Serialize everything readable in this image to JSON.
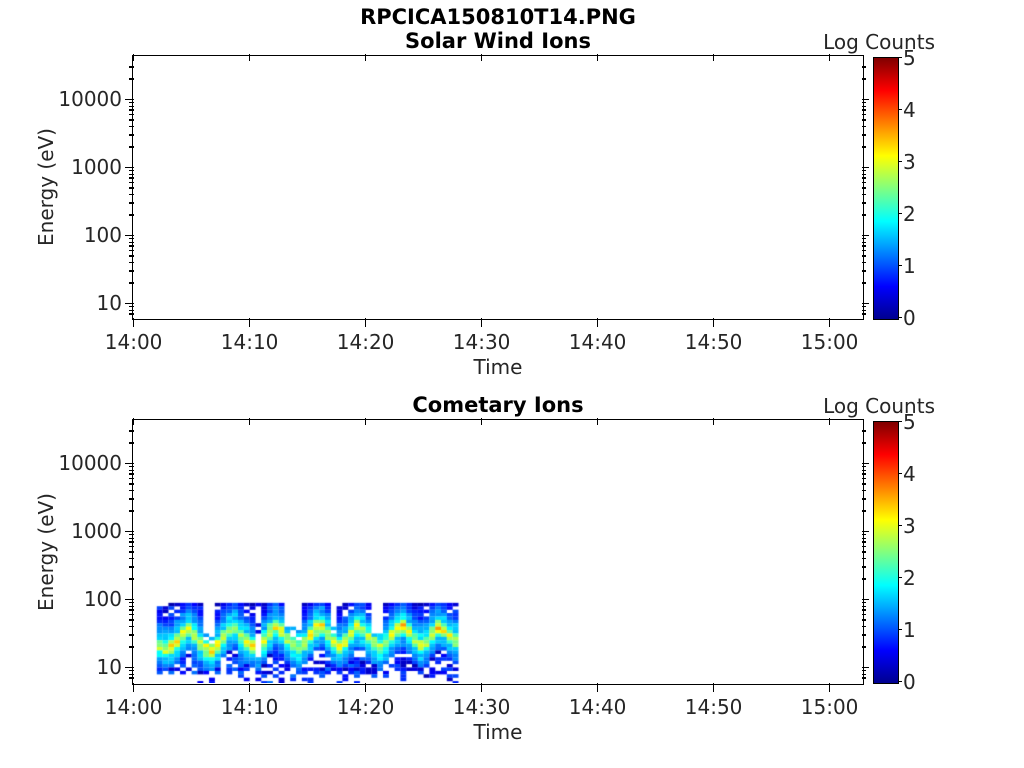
{
  "figure": {
    "suptitle": "RPCICA150810T14.PNG"
  },
  "plots": [
    {
      "title": "Solar Wind Ions",
      "xlabel": "Time",
      "ylabel": "Energy (eV)",
      "x_ticks": [
        "14:00",
        "14:10",
        "14:20",
        "14:30",
        "14:40",
        "14:50",
        "15:00"
      ],
      "y_ticks": [
        "10",
        "100",
        "1000",
        "10000"
      ],
      "colorbar": {
        "title": "Log Counts",
        "ticks": [
          "0",
          "1",
          "2",
          "3",
          "4",
          "5"
        ]
      }
    },
    {
      "title": "Cometary Ions",
      "xlabel": "Time",
      "ylabel": "Energy (eV)",
      "x_ticks": [
        "14:00",
        "14:10",
        "14:20",
        "14:30",
        "14:40",
        "14:50",
        "15:00"
      ],
      "y_ticks": [
        "10",
        "100",
        "1000",
        "10000"
      ],
      "colorbar": {
        "title": "Log Counts",
        "ticks": [
          "0",
          "1",
          "2",
          "3",
          "4",
          "5"
        ]
      }
    }
  ],
  "chart_data": [
    {
      "type": "heatmap",
      "title": "Solar Wind Ions",
      "xlabel": "Time",
      "ylabel": "Energy (eV)",
      "x_range": [
        "14:00",
        "15:03"
      ],
      "y_range_ev": [
        6,
        43000
      ],
      "y_scale": "log",
      "colormap": "jet",
      "colorbar_label": "Log Counts",
      "colorbar_range": [
        0,
        5
      ],
      "values": [],
      "description": "Empty panel - no solar wind ion counts above threshold during this interval."
    },
    {
      "type": "heatmap",
      "title": "Cometary Ions",
      "xlabel": "Time",
      "ylabel": "Energy (eV)",
      "x_range": [
        "14:00",
        "15:03"
      ],
      "y_range_ev": [
        6,
        43000
      ],
      "y_scale": "log",
      "colormap": "jet",
      "colorbar_label": "Log Counts",
      "colorbar_range": [
        0,
        5
      ],
      "data_time_range": [
        "14:02",
        "14:28"
      ],
      "data_energy_extent_ev": [
        6.5,
        90
      ],
      "column_t_start_min_after_1400": 2.0,
      "column_t_step_min": 0.5,
      "band_center_log10_ev": [
        1.34,
        1.3,
        1.33,
        1.42,
        1.52,
        1.58,
        1.5,
        1.38,
        1.3,
        1.28,
        1.35,
        1.48,
        1.58,
        1.6,
        1.5,
        1.4,
        1.34,
        1.32,
        1.4,
        1.55,
        1.62,
        1.55,
        1.44,
        1.36,
        1.32,
        1.38,
        1.5,
        1.6,
        1.63,
        1.52,
        1.4,
        1.34,
        1.4,
        1.52,
        1.62,
        1.58,
        1.46,
        1.38,
        1.32,
        1.38,
        1.5,
        1.6,
        1.64,
        1.54,
        1.42,
        1.35,
        1.4,
        1.52,
        1.62,
        1.58,
        1.48,
        1.42
      ],
      "band_peak_log_counts": [
        2.7,
        2.9,
        3.0,
        3.1,
        3.0,
        2.8,
        2.7,
        2.9,
        3.1,
        3.2,
        3.0,
        2.8,
        2.6,
        2.7,
        2.9,
        3.1,
        3.0,
        2.4,
        2.8,
        3.0,
        3.1,
        2.9,
        2.6,
        2.5,
        2.7,
        2.9,
        3.1,
        3.2,
        3.0,
        2.8,
        2.7,
        2.9,
        3.0,
        3.1,
        2.9,
        2.6,
        2.8,
        3.0,
        2.9,
        2.8,
        3.0,
        3.1,
        3.2,
        3.0,
        2.8,
        2.7,
        2.9,
        3.1,
        3.2,
        3.0,
        2.9,
        2.8
      ],
      "upper_gap_flags": [
        0,
        0,
        0,
        0,
        0,
        0,
        0,
        0,
        1,
        1,
        0,
        0,
        0,
        0,
        0,
        0,
        0,
        2,
        0,
        0,
        0,
        0,
        1,
        1,
        1,
        0,
        0,
        0,
        0,
        0,
        1,
        0,
        0,
        0,
        0,
        0,
        0,
        1,
        1,
        0,
        0,
        0,
        0,
        0,
        0,
        0,
        0,
        0,
        0,
        0,
        0,
        0
      ],
      "description": "Low-energy cometary ion band from 14:02 to 14:28, energies ~6-90 eV; undulating flux peak (log counts ~2.4-3.2, yellow-green) centered near 20-45 eV, cyan/blue wings, dark-blue speckled cap near 60-90 eV and speckles below 15 eV; white data gaps above the band near 14:06, 14:10-14:11, 14:13-14:14, 14:17 and 14:20-14:21. No data after 14:28."
    }
  ]
}
